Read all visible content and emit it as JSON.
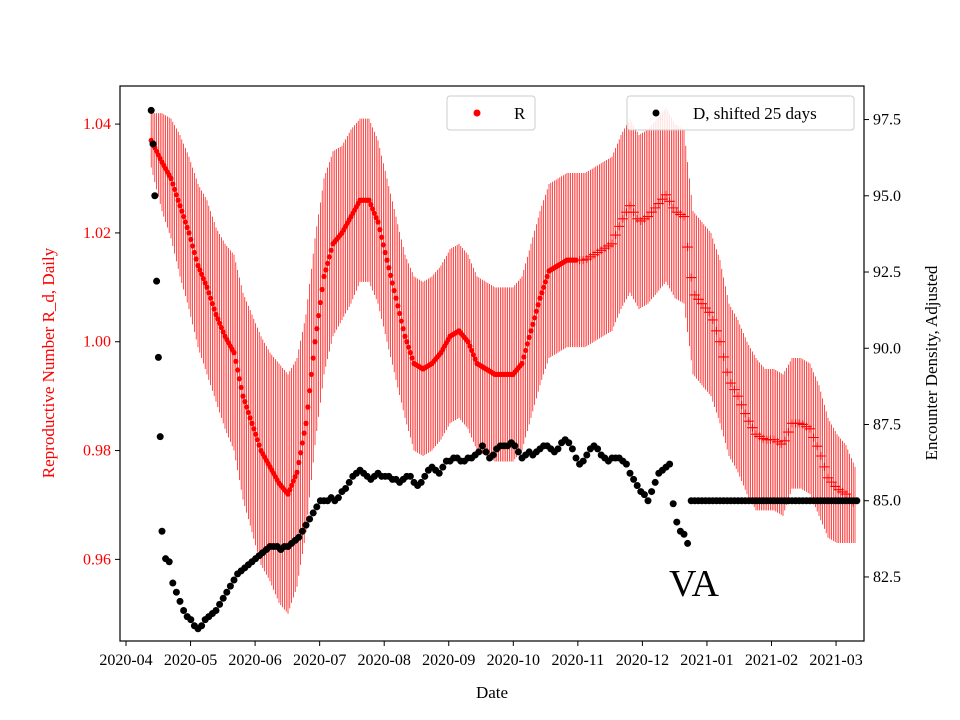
{
  "chart_data": {
    "type": "scatter",
    "state_annotation": "VA",
    "xlabel": "Date",
    "ylabel_left": "Reproductive Number R_d, Daily",
    "ylabel_right": "Encounter Density, Adjusted",
    "colors": {
      "R": "#ff0000",
      "D": "#000000",
      "left_axis": "#ff0000",
      "right_axis": "#000000"
    },
    "x_ticks": [
      "2020-04",
      "2020-05",
      "2020-06",
      "2020-07",
      "2020-08",
      "2020-09",
      "2020-10",
      "2020-11",
      "2020-12",
      "2021-01",
      "2021-02",
      "2021-03"
    ],
    "y_left": {
      "ylim": [
        0.945,
        1.047
      ],
      "ticks": [
        "0.96",
        "0.98",
        "1.00",
        "1.02",
        "1.04"
      ],
      "tick_values": [
        0.96,
        0.98,
        1.0,
        1.02,
        1.04
      ]
    },
    "y_right": {
      "ylim": [
        80.4,
        98.6
      ],
      "ticks": [
        "82.5",
        "85.0",
        "87.5",
        "90.0",
        "92.5",
        "95.0",
        "97.5"
      ],
      "tick_values": [
        82.5,
        85.0,
        87.5,
        90.0,
        92.5,
        95.0,
        97.5
      ]
    },
    "legend": {
      "R_label": "R",
      "D_label": "D, shifted 25 days"
    },
    "R_series": {
      "name": "R",
      "marker_dot_until_day": 250,
      "points": [
        [
          14,
          1.037,
          0.005
        ],
        [
          20,
          1.033,
          0.009
        ],
        [
          25,
          1.03,
          0.011
        ],
        [
          30,
          1.025,
          0.013
        ],
        [
          35,
          1.02,
          0.014
        ],
        [
          40,
          1.014,
          0.015
        ],
        [
          45,
          1.01,
          0.016
        ],
        [
          50,
          1.005,
          0.016
        ],
        [
          55,
          1.001,
          0.017
        ],
        [
          60,
          0.998,
          0.018
        ],
        [
          65,
          0.99,
          0.019
        ],
        [
          70,
          0.985,
          0.02
        ],
        [
          75,
          0.98,
          0.021
        ],
        [
          80,
          0.977,
          0.021
        ],
        [
          85,
          0.974,
          0.022
        ],
        [
          90,
          0.972,
          0.022
        ],
        [
          95,
          0.976,
          0.021
        ],
        [
          100,
          0.985,
          0.02
        ],
        [
          105,
          1.0,
          0.019
        ],
        [
          110,
          1.012,
          0.018
        ],
        [
          115,
          1.018,
          0.017
        ],
        [
          120,
          1.02,
          0.016
        ],
        [
          125,
          1.023,
          0.016
        ],
        [
          130,
          1.026,
          0.015
        ],
        [
          135,
          1.026,
          0.015
        ],
        [
          140,
          1.022,
          0.015
        ],
        [
          145,
          1.015,
          0.015
        ],
        [
          150,
          1.008,
          0.015
        ],
        [
          155,
          1.001,
          0.015
        ],
        [
          160,
          0.996,
          0.016
        ],
        [
          165,
          0.995,
          0.016
        ],
        [
          170,
          0.996,
          0.016
        ],
        [
          175,
          0.998,
          0.016
        ],
        [
          180,
          1.001,
          0.016
        ],
        [
          185,
          1.002,
          0.016
        ],
        [
          190,
          1.0,
          0.016
        ],
        [
          195,
          0.996,
          0.016
        ],
        [
          200,
          0.995,
          0.016
        ],
        [
          205,
          0.994,
          0.016
        ],
        [
          210,
          0.994,
          0.016
        ],
        [
          215,
          0.994,
          0.016
        ],
        [
          220,
          0.996,
          0.016
        ],
        [
          225,
          1.002,
          0.016
        ],
        [
          230,
          1.008,
          0.016
        ],
        [
          235,
          1.013,
          0.016
        ],
        [
          240,
          1.014,
          0.016
        ],
        [
          245,
          1.015,
          0.016
        ],
        [
          250,
          1.015,
          0.016
        ],
        [
          255,
          1.015,
          0.016
        ],
        [
          260,
          1.016,
          0.016
        ],
        [
          265,
          1.017,
          0.016
        ],
        [
          270,
          1.018,
          0.016
        ],
        [
          275,
          1.022,
          0.016
        ],
        [
          280,
          1.025,
          0.016
        ],
        [
          285,
          1.022,
          0.016
        ],
        [
          290,
          1.023,
          0.016
        ],
        [
          295,
          1.025,
          0.016
        ],
        [
          300,
          1.027,
          0.016
        ],
        [
          305,
          1.024,
          0.016
        ],
        [
          310,
          1.023,
          0.016
        ],
        [
          315,
          1.009,
          0.015
        ],
        [
          320,
          1.007,
          0.015
        ],
        [
          325,
          1.005,
          0.015
        ],
        [
          330,
          1.0,
          0.015
        ],
        [
          335,
          0.993,
          0.014
        ],
        [
          340,
          0.99,
          0.014
        ],
        [
          345,
          0.986,
          0.014
        ],
        [
          350,
          0.983,
          0.014
        ],
        [
          355,
          0.982,
          0.013
        ],
        [
          360,
          0.982,
          0.013
        ],
        [
          365,
          0.981,
          0.013
        ],
        [
          370,
          0.985,
          0.012
        ],
        [
          375,
          0.985,
          0.012
        ],
        [
          380,
          0.984,
          0.012
        ],
        [
          385,
          0.98,
          0.012
        ],
        [
          390,
          0.975,
          0.011
        ],
        [
          395,
          0.973,
          0.01
        ],
        [
          400,
          0.972,
          0.009
        ],
        [
          405,
          0.97,
          0.007
        ]
      ]
    },
    "D_series": {
      "name": "D, shifted 25 days",
      "points": [
        [
          14,
          97.8
        ],
        [
          15,
          96.7
        ],
        [
          16,
          95.0
        ],
        [
          17,
          92.2
        ],
        [
          18,
          89.7
        ],
        [
          19,
          87.1
        ],
        [
          20,
          84.0
        ],
        [
          22,
          83.1
        ],
        [
          24,
          83.0
        ],
        [
          26,
          82.3
        ],
        [
          28,
          82.0
        ],
        [
          30,
          81.7
        ],
        [
          32,
          81.4
        ],
        [
          34,
          81.2
        ],
        [
          36,
          81.1
        ],
        [
          38,
          80.9
        ],
        [
          40,
          80.8
        ],
        [
          42,
          80.9
        ],
        [
          44,
          81.1
        ],
        [
          46,
          81.2
        ],
        [
          48,
          81.3
        ],
        [
          50,
          81.4
        ],
        [
          52,
          81.6
        ],
        [
          54,
          81.8
        ],
        [
          56,
          82.0
        ],
        [
          58,
          82.2
        ],
        [
          60,
          82.4
        ],
        [
          62,
          82.6
        ],
        [
          64,
          82.7
        ],
        [
          66,
          82.8
        ],
        [
          68,
          82.9
        ],
        [
          70,
          83.0
        ],
        [
          72,
          83.1
        ],
        [
          74,
          83.2
        ],
        [
          76,
          83.3
        ],
        [
          78,
          83.4
        ],
        [
          80,
          83.5
        ],
        [
          82,
          83.5
        ],
        [
          84,
          83.5
        ],
        [
          86,
          83.4
        ],
        [
          88,
          83.5
        ],
        [
          90,
          83.5
        ],
        [
          92,
          83.6
        ],
        [
          94,
          83.7
        ],
        [
          96,
          83.8
        ],
        [
          98,
          84.0
        ],
        [
          100,
          84.2
        ],
        [
          102,
          84.4
        ],
        [
          104,
          84.6
        ],
        [
          106,
          84.8
        ],
        [
          108,
          85.0
        ],
        [
          110,
          85.0
        ],
        [
          112,
          85.0
        ],
        [
          114,
          85.1
        ],
        [
          116,
          85.0
        ],
        [
          118,
          85.1
        ],
        [
          120,
          85.3
        ],
        [
          122,
          85.4
        ],
        [
          124,
          85.6
        ],
        [
          126,
          85.8
        ],
        [
          128,
          85.9
        ],
        [
          130,
          86.0
        ],
        [
          132,
          85.9
        ],
        [
          134,
          85.8
        ],
        [
          136,
          85.7
        ],
        [
          138,
          85.8
        ],
        [
          140,
          85.9
        ],
        [
          142,
          85.8
        ],
        [
          144,
          85.8
        ],
        [
          146,
          85.8
        ],
        [
          148,
          85.7
        ],
        [
          150,
          85.7
        ],
        [
          152,
          85.6
        ],
        [
          154,
          85.7
        ],
        [
          156,
          85.8
        ],
        [
          158,
          85.8
        ],
        [
          160,
          85.6
        ],
        [
          162,
          85.5
        ],
        [
          164,
          85.6
        ],
        [
          166,
          85.8
        ],
        [
          168,
          86.0
        ],
        [
          170,
          86.1
        ],
        [
          172,
          86.0
        ],
        [
          174,
          85.9
        ],
        [
          176,
          86.1
        ],
        [
          178,
          86.3
        ],
        [
          180,
          86.3
        ],
        [
          182,
          86.4
        ],
        [
          184,
          86.4
        ],
        [
          186,
          86.3
        ],
        [
          188,
          86.3
        ],
        [
          190,
          86.4
        ],
        [
          192,
          86.4
        ],
        [
          194,
          86.5
        ],
        [
          196,
          86.6
        ],
        [
          198,
          86.8
        ],
        [
          200,
          86.6
        ],
        [
          202,
          86.4
        ],
        [
          204,
          86.5
        ],
        [
          206,
          86.7
        ],
        [
          208,
          86.8
        ],
        [
          210,
          86.8
        ],
        [
          212,
          86.8
        ],
        [
          214,
          86.9
        ],
        [
          216,
          86.8
        ],
        [
          218,
          86.6
        ],
        [
          220,
          86.4
        ],
        [
          222,
          86.5
        ],
        [
          224,
          86.6
        ],
        [
          226,
          86.5
        ],
        [
          228,
          86.6
        ],
        [
          230,
          86.7
        ],
        [
          232,
          86.8
        ],
        [
          234,
          86.8
        ],
        [
          236,
          86.7
        ],
        [
          238,
          86.6
        ],
        [
          240,
          86.7
        ],
        [
          242,
          86.9
        ],
        [
          244,
          87.0
        ],
        [
          246,
          86.9
        ],
        [
          248,
          86.7
        ],
        [
          250,
          86.4
        ],
        [
          252,
          86.2
        ],
        [
          254,
          86.3
        ],
        [
          256,
          86.5
        ],
        [
          258,
          86.7
        ],
        [
          260,
          86.8
        ],
        [
          262,
          86.7
        ],
        [
          264,
          86.5
        ],
        [
          266,
          86.4
        ],
        [
          268,
          86.3
        ],
        [
          270,
          86.4
        ],
        [
          272,
          86.4
        ],
        [
          274,
          86.4
        ],
        [
          276,
          86.3
        ],
        [
          278,
          86.2
        ],
        [
          280,
          85.9
        ],
        [
          282,
          85.7
        ],
        [
          284,
          85.5
        ],
        [
          286,
          85.3
        ],
        [
          288,
          85.2
        ],
        [
          290,
          85.0
        ],
        [
          292,
          85.3
        ],
        [
          294,
          85.6
        ],
        [
          296,
          85.9
        ],
        [
          298,
          86.0
        ],
        [
          300,
          86.1
        ],
        [
          302,
          86.2
        ],
        [
          304,
          84.9
        ],
        [
          306,
          84.3
        ],
        [
          308,
          84.0
        ],
        [
          310,
          83.9
        ],
        [
          312,
          83.6
        ],
        [
          314,
          85.0
        ],
        [
          316,
          85.0
        ],
        [
          318,
          85.0
        ],
        [
          320,
          85.0
        ],
        [
          322,
          85.0
        ],
        [
          324,
          85.0
        ],
        [
          326,
          85.0
        ],
        [
          328,
          85.0
        ],
        [
          330,
          85.0
        ],
        [
          332,
          85.0
        ],
        [
          334,
          85.0
        ],
        [
          336,
          85.0
        ],
        [
          338,
          85.0
        ],
        [
          340,
          85.0
        ],
        [
          342,
          85.0
        ],
        [
          344,
          85.0
        ],
        [
          346,
          85.0
        ],
        [
          348,
          85.0
        ],
        [
          350,
          85.0
        ],
        [
          352,
          85.0
        ],
        [
          354,
          85.0
        ],
        [
          356,
          85.0
        ],
        [
          358,
          85.0
        ],
        [
          360,
          85.0
        ],
        [
          362,
          85.0
        ],
        [
          364,
          85.0
        ],
        [
          366,
          85.0
        ],
        [
          368,
          85.0
        ],
        [
          370,
          85.0
        ],
        [
          372,
          85.0
        ],
        [
          374,
          85.0
        ],
        [
          376,
          85.0
        ],
        [
          378,
          85.0
        ],
        [
          380,
          85.0
        ],
        [
          382,
          85.0
        ],
        [
          384,
          85.0
        ],
        [
          386,
          85.0
        ],
        [
          388,
          85.0
        ],
        [
          390,
          85.0
        ],
        [
          392,
          85.0
        ],
        [
          394,
          85.0
        ],
        [
          396,
          85.0
        ],
        [
          398,
          85.0
        ],
        [
          400,
          85.0
        ],
        [
          402,
          85.0
        ],
        [
          404,
          85.0
        ],
        [
          406,
          85.0
        ]
      ]
    }
  }
}
